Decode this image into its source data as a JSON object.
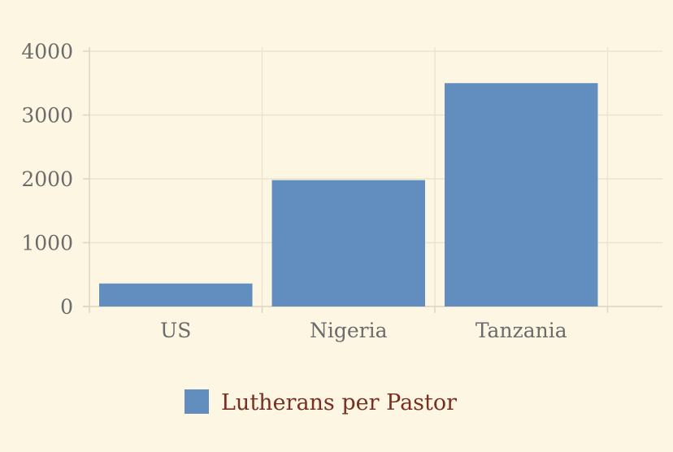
{
  "chart_data": {
    "type": "bar",
    "categories": [
      "US",
      "Nigeria",
      "Tanzania"
    ],
    "series": [
      {
        "name": "Lutherans per Pastor",
        "values": [
          360,
          1980,
          3500
        ],
        "color": "#628dbf"
      }
    ],
    "title": "",
    "xlabel": "",
    "ylabel": "",
    "ylim": [
      0,
      4000
    ],
    "yticks": [
      0,
      1000,
      2000,
      3000,
      4000
    ],
    "grid": true,
    "legend": "bottom",
    "colors": {
      "background": "#fdf6e3",
      "grid": "#ede3cc",
      "axis": "#ddd4c0",
      "tick_text": "#6b6b6b",
      "legend_text": "#7a2e1f"
    }
  }
}
